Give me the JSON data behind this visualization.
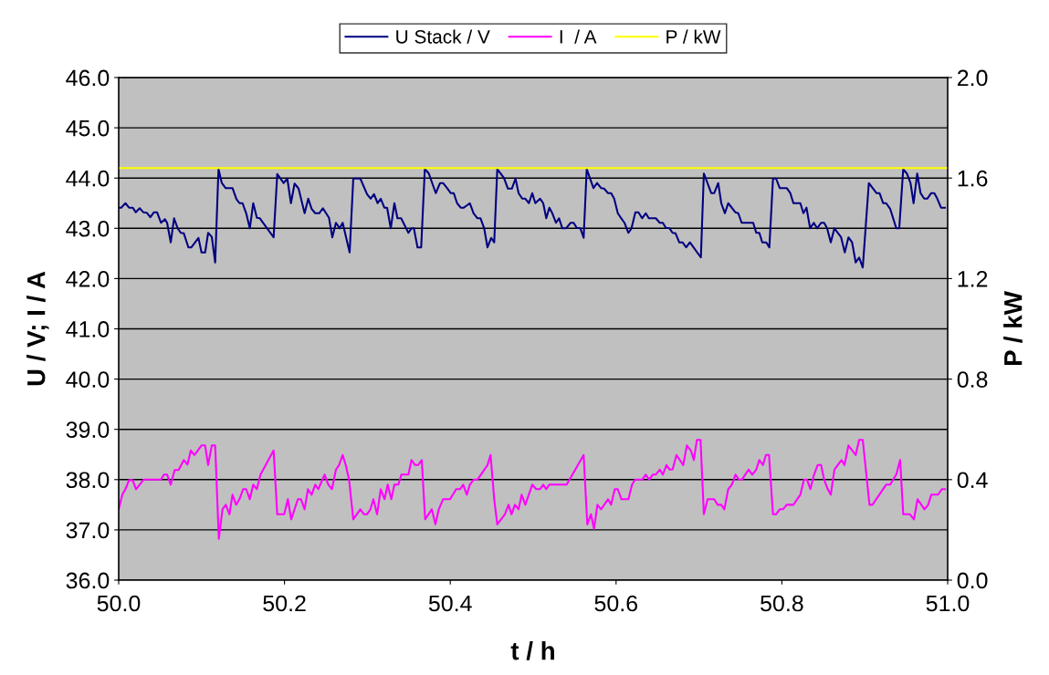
{
  "chart_data": {
    "type": "line",
    "xlabel": "t / h",
    "ylabel": "U / V; I / A",
    "y2label": "P / kW",
    "xlim": [
      50.0,
      51.0
    ],
    "ylim": [
      36.0,
      46.0
    ],
    "y2lim": [
      0.0,
      2.0
    ],
    "xticks": [
      {
        "value": 50.0,
        "label": "50.0"
      },
      {
        "value": 50.2,
        "label": "50.2"
      },
      {
        "value": 50.4,
        "label": "50.4"
      },
      {
        "value": 50.6,
        "label": "50.6"
      },
      {
        "value": 50.8,
        "label": "50.8"
      },
      {
        "value": 51.0,
        "label": "51.0"
      }
    ],
    "yticks": [
      {
        "value": 36.0,
        "label": "36.0"
      },
      {
        "value": 37.0,
        "label": "37.0"
      },
      {
        "value": 38.0,
        "label": "38.0"
      },
      {
        "value": 39.0,
        "label": "39.0"
      },
      {
        "value": 40.0,
        "label": "40.0"
      },
      {
        "value": 41.0,
        "label": "41.0"
      },
      {
        "value": 42.0,
        "label": "42.0"
      },
      {
        "value": 43.0,
        "label": "43.0"
      },
      {
        "value": 44.0,
        "label": "44.0"
      },
      {
        "value": 45.0,
        "label": "45.0"
      },
      {
        "value": 46.0,
        "label": "46.0"
      }
    ],
    "y2ticks": [
      {
        "value": 0.0,
        "label": "0.0"
      },
      {
        "value": 0.4,
        "label": "0.4"
      },
      {
        "value": 0.8,
        "label": "0.8"
      },
      {
        "value": 1.2,
        "label": "1.2"
      },
      {
        "value": 1.6,
        "label": "1.6"
      },
      {
        "value": 2.0,
        "label": "2.0"
      }
    ],
    "grid": "y",
    "legend": "top",
    "marker": "none",
    "line_style": "solid",
    "series": [
      {
        "name": "U Stack / V",
        "color": "#000080",
        "x": [
          50.0,
          50.003,
          50.0081,
          50.0125,
          50.0169,
          50.0206,
          50.0253,
          50.0297,
          50.0338,
          50.0382,
          50.0426,
          50.0463,
          50.051,
          50.0558,
          50.0584,
          50.0628,
          50.0668,
          50.0712,
          50.0749,
          50.0786,
          50.0841,
          50.0877,
          50.0962,
          50.0999,
          50.1043,
          50.1079,
          50.1123,
          50.1164,
          50.1204,
          50.1244,
          50.1289,
          50.1373,
          50.1421,
          50.1457,
          50.1494,
          50.1538,
          50.1582,
          50.1623,
          50.1667,
          50.1703,
          50.1869,
          50.1913,
          50.199,
          50.2034,
          50.2078,
          50.2122,
          50.217,
          50.2243,
          50.2287,
          50.2327,
          50.2371,
          50.2419,
          50.2463,
          50.2537,
          50.2577,
          50.2621,
          50.2665,
          50.2702,
          50.2786,
          50.283,
          50.2915,
          50.2996,
          50.304,
          50.308,
          50.3124,
          50.3161,
          50.3205,
          50.3238,
          50.3282,
          50.3326,
          50.3363,
          50.3407,
          50.3495,
          50.3532,
          50.3561,
          50.3605,
          50.3649,
          50.3693,
          50.3741,
          50.3825,
          50.3877,
          50.3913,
          50.3961,
          50.4005,
          50.4042,
          50.4082,
          50.4126,
          50.4163,
          50.4236,
          50.4281,
          50.4328,
          50.4365,
          50.4409,
          50.4449,
          50.4493,
          50.453,
          50.4567,
          50.4648,
          50.4695,
          50.4743,
          50.4787,
          50.4824,
          50.4868,
          50.4905,
          50.4949,
          50.4989,
          50.5026,
          50.5084,
          50.5121,
          50.5158,
          50.5195,
          50.5231,
          50.5275,
          50.5312,
          50.5352,
          50.5396,
          50.5452,
          50.5488,
          50.5525,
          50.5569,
          50.5609,
          50.5646,
          50.5727,
          50.5771,
          50.5819,
          50.5855,
          50.5903,
          50.594,
          50.5977,
          50.6021,
          50.6057,
          50.6101,
          50.6149,
          50.6186,
          50.6233,
          50.627,
          50.6314,
          50.6358,
          50.6395,
          50.6479,
          50.6527,
          50.6564,
          50.6601,
          50.6645,
          50.6681,
          50.6718,
          50.6762,
          50.6802,
          50.6846,
          50.6891,
          50.7023,
          50.7059,
          50.7148,
          50.7184,
          50.7232,
          50.7269,
          50.7313,
          50.7353,
          50.7438,
          50.7474,
          50.7515,
          50.7654,
          50.7691,
          50.7728,
          50.7764,
          50.7812,
          50.7849,
          50.7893,
          50.793,
          50.7974,
          50.8058,
          50.8102,
          50.8139,
          50.8223,
          50.826,
          50.8297,
          50.8341,
          50.8385,
          50.8425,
          50.8473,
          50.851,
          50.8546,
          50.859,
          50.8634,
          50.8715,
          50.8759,
          50.8803,
          50.8847,
          50.8891,
          50.8932,
          50.8976,
          50.9049,
          50.9141,
          50.9178,
          50.9222,
          50.9258,
          50.9306,
          50.938,
          50.9416,
          50.9464,
          50.9508,
          50.9552,
          50.9589,
          50.9633,
          50.9673,
          50.9717,
          50.9754,
          50.9802,
          50.9839,
          50.9875,
          50.992,
          50.9967
        ],
        "values": [
          43.41,
          43.41,
          43.5,
          43.41,
          43.41,
          43.32,
          43.4,
          43.32,
          43.31,
          43.22,
          43.32,
          43.32,
          43.11,
          43.18,
          43.11,
          42.72,
          43.2,
          43.0,
          42.91,
          42.9,
          42.62,
          42.62,
          42.81,
          42.52,
          42.52,
          42.91,
          42.83,
          42.32,
          44.18,
          43.9,
          43.8,
          43.8,
          43.58,
          43.5,
          43.5,
          43.3,
          43.0,
          43.5,
          43.21,
          43.2,
          42.82,
          44.08,
          43.9,
          43.99,
          43.5,
          43.89,
          43.79,
          43.3,
          43.59,
          43.39,
          43.3,
          43.3,
          43.4,
          43.21,
          42.82,
          43.11,
          43.0,
          43.11,
          42.52,
          43.99,
          43.99,
          43.68,
          43.59,
          43.68,
          43.5,
          43.59,
          43.41,
          43.41,
          43.0,
          43.5,
          43.2,
          43.2,
          42.91,
          43.0,
          43.0,
          42.62,
          42.62,
          44.18,
          44.09,
          43.7,
          43.9,
          43.9,
          43.8,
          43.7,
          43.7,
          43.5,
          43.41,
          43.41,
          43.5,
          43.3,
          43.2,
          43.2,
          43.0,
          42.62,
          42.81,
          42.72,
          44.18,
          44.0,
          43.79,
          43.79,
          43.99,
          43.7,
          43.59,
          43.59,
          43.5,
          43.7,
          43.5,
          43.59,
          43.5,
          43.2,
          43.41,
          43.3,
          43.11,
          43.2,
          43.0,
          43.0,
          43.11,
          43.11,
          43.01,
          43.0,
          42.81,
          44.18,
          43.8,
          43.9,
          43.8,
          43.79,
          43.7,
          43.7,
          43.59,
          43.3,
          43.21,
          43.11,
          42.91,
          43.0,
          43.32,
          43.32,
          43.2,
          43.3,
          43.2,
          43.2,
          43.11,
          43.11,
          43.01,
          43.0,
          42.91,
          42.9,
          42.72,
          42.72,
          42.62,
          42.72,
          42.42,
          44.09,
          43.7,
          43.7,
          43.9,
          43.5,
          43.3,
          43.5,
          43.32,
          43.3,
          43.11,
          43.11,
          42.91,
          42.91,
          42.72,
          42.72,
          42.62,
          43.99,
          43.99,
          43.8,
          43.8,
          43.7,
          43.5,
          43.5,
          43.3,
          43.41,
          43.0,
          43.11,
          43.0,
          43.11,
          43.11,
          43.0,
          42.72,
          43.0,
          42.82,
          42.52,
          42.82,
          42.72,
          42.32,
          42.42,
          42.22,
          43.9,
          43.7,
          43.7,
          43.5,
          43.5,
          43.39,
          43.0,
          43.0,
          44.18,
          44.09,
          43.9,
          43.5,
          44.09,
          43.7,
          43.59,
          43.59,
          43.7,
          43.7,
          43.59,
          43.41,
          43.41
        ]
      },
      {
        "name": "I  / A",
        "color": "#ff00ff",
        "x": [
          50.0,
          50.0044,
          50.0081,
          50.0125,
          50.0169,
          50.0209,
          50.0253,
          50.0301,
          50.051,
          50.0547,
          50.0584,
          50.0628,
          50.0675,
          50.0723,
          50.0786,
          50.083,
          50.087,
          50.0914,
          50.0999,
          50.1043,
          50.1079,
          50.1123,
          50.1164,
          50.1208,
          50.1252,
          50.1292,
          50.1336,
          50.1373,
          50.1417,
          50.1457,
          50.1501,
          50.1538,
          50.1582,
          50.1623,
          50.1667,
          50.1711,
          50.1869,
          50.1913,
          50.1997,
          50.2041,
          50.2081,
          50.2162,
          50.2199,
          50.2243,
          50.2283,
          50.2327,
          50.2371,
          50.2408,
          50.2485,
          50.2529,
          50.2573,
          50.2621,
          50.2658,
          50.2702,
          50.2739,
          50.2779,
          50.283,
          50.2915,
          50.2959,
          50.2996,
          50.3036,
          50.3073,
          50.3117,
          50.3161,
          50.3208,
          50.3245,
          50.3289,
          50.3326,
          50.3374,
          50.341,
          50.3495,
          50.3532,
          50.3576,
          50.3612,
          50.3656,
          50.3697,
          50.3777,
          50.3821,
          50.3862,
          50.3913,
          50.3998,
          50.4071,
          50.4119,
          50.4156,
          50.42,
          50.4236,
          50.4281,
          50.4328,
          50.4449,
          50.4486,
          50.453,
          50.4567,
          50.4659,
          50.4703,
          50.4739,
          50.478,
          50.4824,
          50.4861,
          50.4905,
          50.4989,
          50.5037,
          50.5084,
          50.5121,
          50.5158,
          50.5195,
          50.5404,
          50.5609,
          50.5653,
          50.5697,
          50.5734,
          50.5775,
          50.5819,
          50.5903,
          50.594,
          50.5984,
          50.6021,
          50.6065,
          50.6149,
          50.6193,
          50.623,
          50.6314,
          50.6358,
          50.6399,
          50.6443,
          50.6479,
          50.6527,
          50.6564,
          50.6608,
          50.6645,
          50.6681,
          50.6729,
          50.681,
          50.6854,
          50.6902,
          50.6938,
          50.6975,
          50.7019,
          50.7059,
          50.7104,
          50.7184,
          50.7225,
          50.7269,
          50.7306,
          50.7353,
          50.7397,
          50.7441,
          50.7482,
          50.7518,
          50.7599,
          50.7643,
          50.7691,
          50.7728,
          50.7772,
          50.7808,
          50.7845,
          50.7893,
          50.793,
          50.7974,
          50.8014,
          50.8058,
          50.8139,
          50.8223,
          50.8267,
          50.8304,
          50.8344,
          50.8388,
          50.8432,
          50.8473,
          50.851,
          50.8554,
          50.859,
          50.8634,
          50.8719,
          50.8756,
          50.8803,
          50.8891,
          50.8932,
          50.8976,
          50.9057,
          50.9093,
          50.9258,
          50.9306,
          50.938,
          50.9427,
          50.9464,
          50.9545,
          50.9593,
          50.9637,
          50.9721,
          50.9765,
          50.9802,
          50.9883,
          50.993,
          50.9967
        ],
        "values": [
          37.41,
          37.7,
          37.81,
          37.99,
          37.99,
          37.81,
          37.9,
          38.0,
          38.0,
          38.1,
          38.1,
          37.9,
          38.19,
          38.19,
          38.39,
          38.3,
          38.58,
          38.49,
          38.68,
          38.68,
          38.29,
          38.68,
          38.68,
          36.82,
          37.41,
          37.5,
          37.31,
          37.7,
          37.5,
          37.61,
          37.81,
          37.81,
          37.61,
          37.9,
          37.81,
          38.1,
          38.58,
          37.31,
          37.31,
          37.61,
          37.21,
          37.61,
          37.61,
          37.41,
          37.81,
          37.7,
          37.9,
          37.81,
          38.1,
          37.9,
          37.81,
          38.2,
          38.29,
          38.49,
          38.29,
          38.0,
          37.21,
          37.41,
          37.31,
          37.31,
          37.41,
          37.61,
          37.31,
          37.81,
          37.61,
          37.9,
          37.61,
          37.9,
          37.9,
          38.1,
          38.1,
          38.39,
          38.29,
          38.29,
          38.39,
          37.21,
          37.41,
          37.11,
          37.41,
          37.61,
          37.61,
          37.81,
          37.81,
          37.9,
          37.7,
          37.9,
          38.0,
          38.0,
          38.29,
          38.49,
          37.61,
          37.11,
          37.31,
          37.5,
          37.31,
          37.5,
          37.41,
          37.7,
          37.5,
          37.9,
          37.81,
          37.81,
          37.9,
          37.81,
          37.9,
          37.9,
          38.49,
          37.11,
          37.31,
          37.02,
          37.5,
          37.41,
          37.61,
          37.5,
          37.81,
          37.81,
          37.61,
          37.61,
          37.9,
          38.0,
          38.0,
          38.1,
          38.0,
          38.1,
          38.1,
          38.2,
          38.1,
          38.29,
          38.2,
          38.2,
          38.49,
          38.29,
          38.68,
          38.58,
          38.39,
          38.79,
          38.79,
          37.31,
          37.61,
          37.61,
          37.5,
          37.5,
          37.41,
          37.81,
          37.9,
          38.1,
          38.0,
          38.0,
          38.2,
          38.1,
          38.2,
          38.39,
          38.29,
          38.49,
          38.49,
          37.31,
          37.31,
          37.41,
          37.41,
          37.5,
          37.5,
          37.7,
          38.0,
          38.0,
          37.81,
          38.1,
          38.29,
          38.29,
          38.0,
          37.81,
          37.7,
          38.2,
          38.39,
          38.29,
          38.68,
          38.49,
          38.79,
          38.79,
          37.5,
          37.5,
          37.9,
          37.9,
          38.1,
          38.39,
          37.31,
          37.31,
          37.21,
          37.61,
          37.41,
          37.5,
          37.7,
          37.7,
          37.81,
          37.81
        ]
      },
      {
        "name": "P / kW",
        "color": "#ffff00",
        "axis": "y2",
        "x": [
          50.0,
          50.25,
          50.5,
          50.75,
          51.0
        ],
        "values": [
          1.64,
          1.64,
          1.64,
          1.64,
          1.64
        ]
      }
    ]
  }
}
